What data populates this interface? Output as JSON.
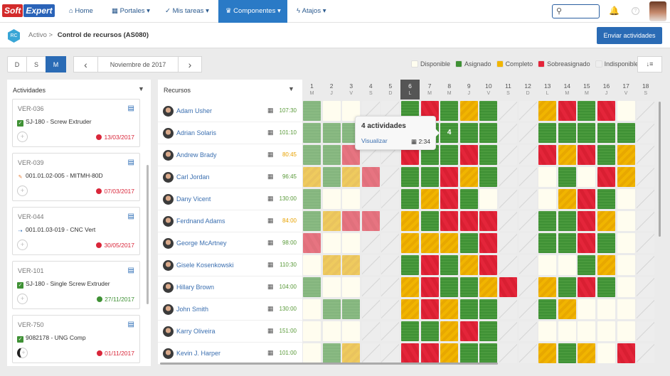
{
  "nav": {
    "logo": [
      "Soft",
      "Expert"
    ],
    "items": [
      {
        "label": "Home",
        "icon": "home-icon",
        "glyph": "⌂"
      },
      {
        "label": "Portales ▾",
        "icon": "grid-icon",
        "glyph": "▦"
      },
      {
        "label": "Mis tareas ▾",
        "icon": "check-icon",
        "glyph": "✓"
      },
      {
        "label": "Componentes ▾",
        "icon": "trophy-icon",
        "glyph": "♛"
      },
      {
        "label": "Atajos ▾",
        "icon": "bolt-icon",
        "glyph": "ϟ"
      }
    ],
    "search_glyph": "⚲",
    "bell_glyph": "🔔",
    "help_glyph": "?"
  },
  "header": {
    "icon_text": "RC",
    "breadcrumb_parent": "Activo",
    "separator": ">",
    "breadcrumb_current": "Control de recursos (AS080)",
    "send_button": "Enviar actividades"
  },
  "toolbar": {
    "views": [
      "D",
      "S",
      "M"
    ],
    "active_view": "M",
    "prev": "‹",
    "month": "Noviembre de 2017",
    "next": "›",
    "sort_glyph": "↓≡"
  },
  "legend": [
    {
      "label": "Disponible",
      "color": "#fffdef"
    },
    {
      "label": "Asignado",
      "color": "#3f9135"
    },
    {
      "label": "Completo",
      "color": "#f1b500"
    },
    {
      "label": "Sobreasignado",
      "color": "#e4253a"
    },
    {
      "label": "Indisponible",
      "color": "#eeeeee"
    }
  ],
  "activities": {
    "title": "Actividades",
    "filter_glyph": "▼",
    "cards": [
      {
        "code": "VER-036",
        "item": "SJ-180 - Screw Extruder",
        "item_type": "check",
        "date": "13/03/2017",
        "status": "late"
      },
      {
        "code": "VER-039",
        "item": "001.01.02-005 - MITMH-80D",
        "item_type": "tool",
        "date": "07/03/2017",
        "status": "late"
      },
      {
        "code": "VER-044",
        "item": "001.01.03-019 - CNC Vert",
        "item_type": "branch",
        "date": "30/05/2017",
        "status": "late"
      },
      {
        "code": "VER-101",
        "item": "SJ-180 - Single Screw Extruder",
        "item_type": "check",
        "date": "27/11/2017",
        "status": "ok"
      },
      {
        "code": "VER-750",
        "item": "9082178 - UNG Comp",
        "item_type": "check",
        "date": "01/11/2017",
        "status": "late"
      }
    ]
  },
  "resources": {
    "title": "Recursos",
    "filter_glyph": "▼",
    "calendar_glyph": "▦",
    "rows": [
      {
        "name": "Adam Usher",
        "hours": "107:30",
        "hours_status": "ok",
        "cells": "aDDIIASACAIICSASDI"
      },
      {
        "name": "Adrian Solaris",
        "hours": "101:10",
        "hours_status": "ok",
        "cells": "aaaIIAAAAAIIAAAAAI"
      },
      {
        "name": "Andrew Brady",
        "hours": "80:45",
        "hours_status": "warn",
        "cells": "aasIISAASAIISCSACI"
      },
      {
        "name": "Carl Jordan",
        "hours": "96:45",
        "hours_status": "ok",
        "cells": "cacsIAASCAIIDADSCI"
      },
      {
        "name": "Dany Vicent",
        "hours": "130:00",
        "hours_status": "ok",
        "cells": "aDDIIACSADIIDCSADI"
      },
      {
        "name": "Ferdnand Adams",
        "hours": "84:00",
        "hours_status": "warn",
        "cells": "acssICASSSIIAASCDI"
      },
      {
        "name": "George McArtney",
        "hours": "98:00",
        "hours_status": "ok",
        "cells": "sDDIICCCASIIAASADI"
      },
      {
        "name": "Gisele Kosenkowski",
        "hours": "110:30",
        "hours_status": "ok",
        "cells": "DccIIASACSIIDDACDI"
      },
      {
        "name": "Hillary Brown",
        "hours": "104:00",
        "hours_status": "ok",
        "cells": "aDDIICSAACSICASADI"
      },
      {
        "name": "John Smith",
        "hours": "130:00",
        "hours_status": "ok",
        "cells": "DaaIICSCAAIIACDDDI"
      },
      {
        "name": "Karry Oliveira",
        "hours": "151:00",
        "hours_status": "ok",
        "cells": "DDDIIAACSAIIDDDDDI"
      },
      {
        "name": "Kevin J. Harper",
        "hours": "101:00",
        "hours_status": "ok",
        "cells": "DacIISSCAAIICACDSI"
      }
    ]
  },
  "days": [
    {
      "n": "1",
      "w": "M"
    },
    {
      "n": "2",
      "w": "J"
    },
    {
      "n": "3",
      "w": "V"
    },
    {
      "n": "4",
      "w": "S"
    },
    {
      "n": "5",
      "w": "D"
    },
    {
      "n": "6",
      "w": "L",
      "today": true
    },
    {
      "n": "7",
      "w": "M"
    },
    {
      "n": "8",
      "w": "M"
    },
    {
      "n": "9",
      "w": "J"
    },
    {
      "n": "10",
      "w": "V"
    },
    {
      "n": "11",
      "w": "S"
    },
    {
      "n": "12",
      "w": "D"
    },
    {
      "n": "13",
      "w": "L"
    },
    {
      "n": "14",
      "w": "M"
    },
    {
      "n": "15",
      "w": "M"
    },
    {
      "n": "16",
      "w": "J"
    },
    {
      "n": "17",
      "w": "V"
    },
    {
      "n": "18",
      "w": "S"
    }
  ],
  "highlight_cell": {
    "row": 1,
    "day": 8,
    "count": "4"
  },
  "tooltip": {
    "title": "4 actividades",
    "link": "Visualizar",
    "time": "2:34",
    "time_glyph": "▦"
  },
  "colors": {
    "ok": "#5a9a3a",
    "warn": "#e8a200",
    "late": "#d9263a",
    "good": "#3f9135",
    "accent": "#2a6bb5"
  }
}
